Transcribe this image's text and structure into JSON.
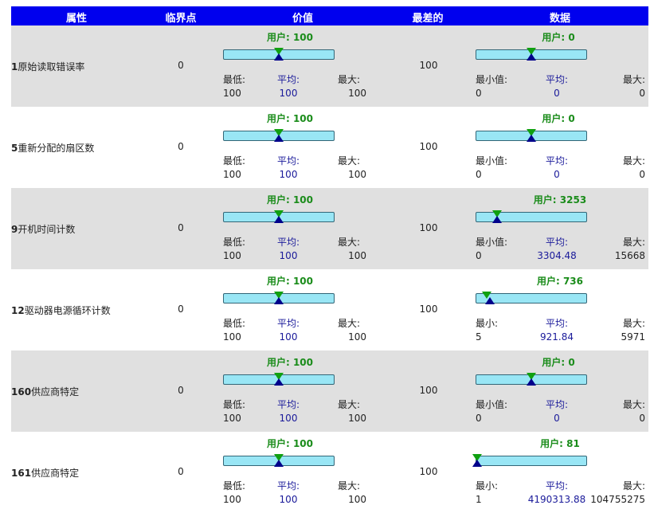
{
  "headers": {
    "attribute": "属性",
    "threshold": "临界点",
    "value": "价值",
    "worst": "最差的",
    "data": "数据"
  },
  "rows": [
    {
      "id": "1",
      "name": "原始读取错误率",
      "threshold": "0",
      "worst": "100",
      "value_gauge": {
        "user": "用户: 100",
        "min_label": "最低:",
        "avg_label": "平均:",
        "max_label": "最大:",
        "min": "100",
        "avg": "100",
        "max": "100",
        "user_fraction": 0.5,
        "avg_fraction": 0.5
      },
      "data_gauge": {
        "user": "用户: 0",
        "min_label": "最小值:",
        "avg_label": "平均:",
        "max_label": "最大:",
        "min": "0",
        "avg": "0",
        "max": "0",
        "user_fraction": 0.5,
        "avg_fraction": 0.5
      }
    },
    {
      "id": "5",
      "name": "重新分配的扇区数",
      "threshold": "0",
      "worst": "100",
      "value_gauge": {
        "user": "用户: 100",
        "min_label": "最低:",
        "avg_label": "平均:",
        "max_label": "最大:",
        "min": "100",
        "avg": "100",
        "max": "100",
        "user_fraction": 0.5,
        "avg_fraction": 0.5
      },
      "data_gauge": {
        "user": "用户: 0",
        "min_label": "最小值:",
        "avg_label": "平均:",
        "max_label": "最大:",
        "min": "0",
        "avg": "0",
        "max": "0",
        "user_fraction": 0.5,
        "avg_fraction": 0.5
      }
    },
    {
      "id": "9",
      "name": "开机时间计数",
      "threshold": "0",
      "worst": "100",
      "value_gauge": {
        "user": "用户: 100",
        "min_label": "最低:",
        "avg_label": "平均:",
        "max_label": "最大:",
        "min": "100",
        "avg": "100",
        "max": "100",
        "user_fraction": 0.5,
        "avg_fraction": 0.5
      },
      "data_gauge": {
        "user": "用户: 3253",
        "min_label": "最小值:",
        "avg_label": "平均:",
        "max_label": "最大:",
        "min": "0",
        "avg": "3304.48",
        "max": "15668",
        "user_fraction": 0.19,
        "avg_fraction": 0.19
      }
    },
    {
      "id": "12",
      "name": "驱动器电源循环计数",
      "threshold": "0",
      "worst": "100",
      "value_gauge": {
        "user": "用户: 100",
        "min_label": "最低:",
        "avg_label": "平均:",
        "max_label": "最大:",
        "min": "100",
        "avg": "100",
        "max": "100",
        "user_fraction": 0.5,
        "avg_fraction": 0.5
      },
      "data_gauge": {
        "user": "用户: 736",
        "min_label": "最小:",
        "avg_label": "平均:",
        "max_label": "最大:",
        "min": "5",
        "avg": "921.84",
        "max": "5971",
        "user_fraction": 0.1,
        "avg_fraction": 0.13
      }
    },
    {
      "id": "160",
      "name": "供应商特定",
      "threshold": "0",
      "worst": "100",
      "value_gauge": {
        "user": "用户: 100",
        "min_label": "最低:",
        "avg_label": "平均:",
        "max_label": "最大:",
        "min": "100",
        "avg": "100",
        "max": "100",
        "user_fraction": 0.5,
        "avg_fraction": 0.5
      },
      "data_gauge": {
        "user": "用户: 0",
        "min_label": "最小值:",
        "avg_label": "平均:",
        "max_label": "最大:",
        "min": "0",
        "avg": "0",
        "max": "0",
        "user_fraction": 0.5,
        "avg_fraction": 0.5
      }
    },
    {
      "id": "161",
      "name": "供应商特定",
      "threshold": "0",
      "worst": "100",
      "value_gauge": {
        "user": "用户: 100",
        "min_label": "最低:",
        "avg_label": "平均:",
        "max_label": "最大:",
        "min": "100",
        "avg": "100",
        "max": "100",
        "user_fraction": 0.5,
        "avg_fraction": 0.5
      },
      "data_gauge": {
        "user": "用户: 81",
        "min_label": "最小:",
        "avg_label": "平均:",
        "max_label": "最大:",
        "min": "1",
        "avg": "4190313.88",
        "max": "104755275",
        "user_fraction": 0.0,
        "avg_fraction": 0.0
      }
    }
  ],
  "colors": {
    "header_bg": "#0000ee",
    "row_shade": "#e0e0e0",
    "bar_fill": "#99e6f5",
    "user_marker": "#10a010",
    "avg_marker": "#00008b",
    "user_text": "#1a8c1a",
    "avg_text": "#1a1a9a"
  }
}
